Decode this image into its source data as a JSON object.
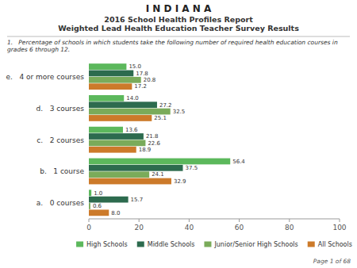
{
  "chart_data": {
    "type": "bar",
    "orientation": "horizontal",
    "title": "I N D I A N A",
    "subtitle": [
      "2016 School Health Profiles Report",
      "Weighted Lead Health Education Teacher Survey Results"
    ],
    "annotations": [
      "1.   Percentage of schools in which students take the following number of required health education courses in grades 6 through 12.",
      "Page 1 of 68"
    ],
    "categories": [
      "a.   0 courses",
      "b.   1 course",
      "c.   2 courses",
      "d.   3 courses",
      "e.   4 or more courses"
    ],
    "series": [
      {
        "name": "High Schools",
        "color": "#5cb85c",
        "values": [
          1.0,
          56.4,
          13.6,
          14.0,
          15.0
        ],
        "value_labels": [
          "1.0",
          "56.4",
          "13.6",
          "14.0",
          "15.0"
        ]
      },
      {
        "name": "Middle Schools",
        "color": "#2d6b4e",
        "values": [
          15.7,
          37.5,
          21.8,
          27.2,
          17.8
        ],
        "value_labels": [
          "15.7",
          "37.5",
          "21.8",
          "27.2",
          "17.8"
        ]
      },
      {
        "name": "Junior/Senior High Schools",
        "color": "#7aab5a",
        "values": [
          0.6,
          24.1,
          22.6,
          32.5,
          20.8
        ],
        "value_labels": [
          "0.6",
          "24.1",
          "22.6",
          "32.5",
          "20.8"
        ]
      },
      {
        "name": "All Schools",
        "color": "#cc7a2a",
        "values": [
          8.0,
          32.9,
          18.9,
          25.1,
          17.2
        ],
        "value_labels": [
          "8.0",
          "32.9",
          "18.9",
          "25.1",
          "17.2"
        ]
      }
    ],
    "xlim": [
      0,
      100
    ],
    "xticks": [
      0,
      20,
      40,
      60,
      80,
      100
    ],
    "grid": false,
    "legend": "bottom",
    "data_labels": true
  }
}
